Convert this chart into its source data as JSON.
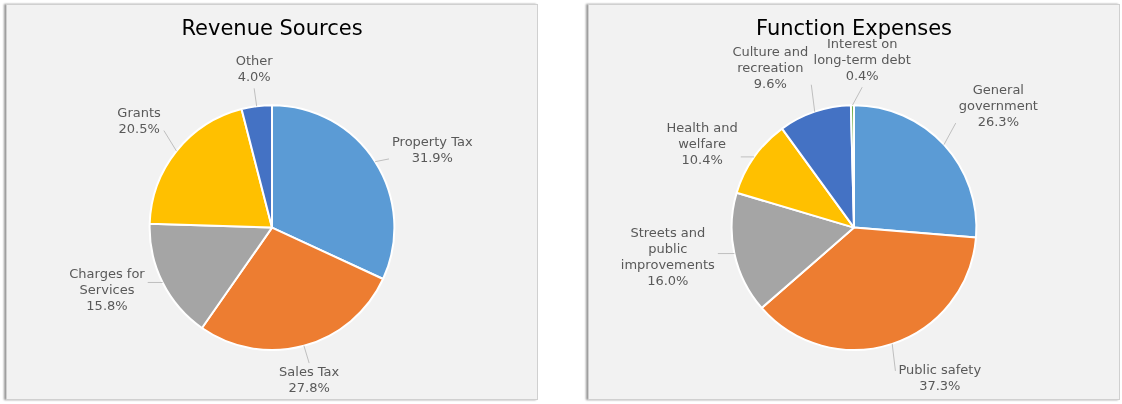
{
  "chart_data": [
    {
      "type": "pie",
      "title": "Revenue Sources",
      "categories": [
        "Property Tax",
        "Sales Tax",
        "Charges for Services",
        "Grants",
        "Other"
      ],
      "values": [
        31.9,
        27.8,
        15.8,
        20.5,
        4.0
      ],
      "value_labels": [
        "31.9%",
        "27.8%",
        "15.8%",
        "20.5%",
        "4.0%"
      ],
      "colors": [
        "#5b9bd5",
        "#ed7d31",
        "#a5a5a5",
        "#ffc000",
        "#4472c4"
      ]
    },
    {
      "type": "pie",
      "title": "Function Expenses",
      "categories": [
        "General government",
        "Public safety",
        "Streets and public improvements",
        "Health and welfare",
        "Culture and recreation",
        "Interest on long-term debt"
      ],
      "values": [
        26.3,
        37.3,
        16.0,
        10.4,
        9.6,
        0.4
      ],
      "value_labels": [
        "26.3%",
        "37.3%",
        "16.0%",
        "10.4%",
        "9.6%",
        "0.4%"
      ],
      "colors": [
        "#5b9bd5",
        "#ed7d31",
        "#a5a5a5",
        "#ffc000",
        "#4472c4",
        "#70ad47"
      ]
    }
  ]
}
